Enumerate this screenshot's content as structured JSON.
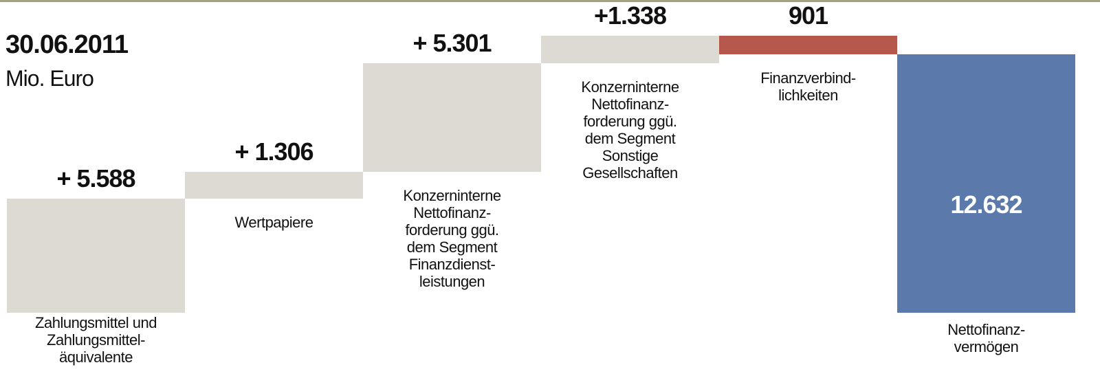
{
  "chart_data": {
    "type": "waterfall",
    "title": "30.06.2011",
    "subtitle": "Mio. Euro",
    "categories": [
      "Zahlungsmittel und\nZahlungsmittel-\näquivalente",
      "Wertpapiere",
      "Konzerninterne\nNettofinanz-\nforderung ggü.\ndem Segment\nFinanzdienst-\nleistungen",
      "Konzerninterne\nNettofinanz-\nforderung ggü.\ndem Segment\nSonstige\nGesellschaften",
      "Finanzverbind-\nlichkeiten",
      "Nettofinanz-\nvermögen"
    ],
    "values": [
      5588,
      1306,
      5301,
      1338,
      -901,
      12632
    ],
    "value_labels": [
      "+ 5.588",
      "+ 1.306",
      "+ 5.301",
      "+1.338",
      "901",
      "12.632"
    ],
    "measure": [
      "relative",
      "relative",
      "relative",
      "relative",
      "relative",
      "total"
    ],
    "increase_color": "#dcdad2",
    "decrease_color": "#b5574a",
    "total_color": "#5b7aab"
  }
}
